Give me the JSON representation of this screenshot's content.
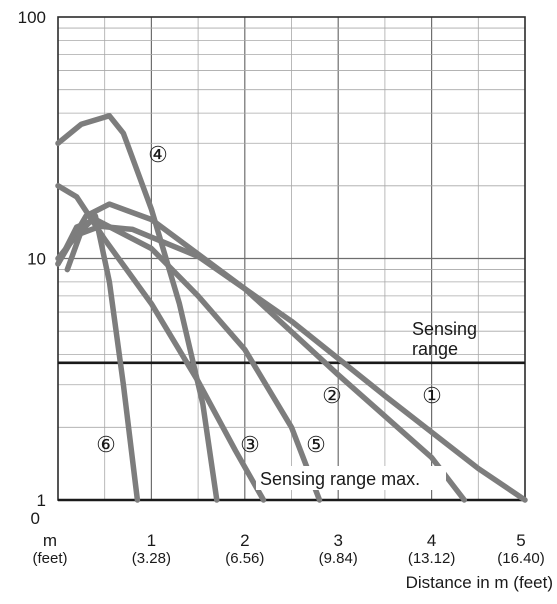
{
  "chart_data": {
    "type": "line",
    "x_axis": {
      "unit_label": "m",
      "unit_sub_label": "(feet)",
      "ticks": [
        1,
        2,
        3,
        4,
        5
      ],
      "tick_sub_labels": [
        "(3.28)",
        "(6.56)",
        "(9.84)",
        "(13.12)",
        "(16.40)"
      ],
      "zero_label": "0",
      "title": "Distance in m (feet)",
      "range": [
        0,
        5
      ]
    },
    "y_axis": {
      "scale": "log",
      "range": [
        1,
        100
      ],
      "tick_labels": [
        "1",
        "10",
        "100"
      ],
      "tick_values": [
        1,
        10,
        100
      ]
    },
    "grid": true,
    "reference_lines": [
      {
        "y": 3.7,
        "label_lines": [
          "Sensing",
          "range"
        ]
      },
      {
        "y": 1,
        "label": "Sensing range max."
      }
    ],
    "series": [
      {
        "name": "①",
        "points": [
          [
            0,
            10
          ],
          [
            0.2,
            12.5
          ],
          [
            0.45,
            13.6
          ],
          [
            0.8,
            13.2
          ],
          [
            1.5,
            10.2
          ],
          [
            2.5,
            5.5
          ],
          [
            3.5,
            2.7
          ],
          [
            4.5,
            1.35
          ],
          [
            5,
            1
          ]
        ]
      },
      {
        "name": "②",
        "points": [
          [
            0,
            9.5
          ],
          [
            0.3,
            15
          ],
          [
            0.55,
            16.8
          ],
          [
            1,
            14.5
          ],
          [
            2,
            7.5
          ],
          [
            3,
            3.3
          ],
          [
            4,
            1.5
          ],
          [
            4.35,
            1
          ]
        ]
      },
      {
        "name": "③",
        "points": [
          [
            0,
            20
          ],
          [
            0.2,
            18
          ],
          [
            0.5,
            12
          ],
          [
            1,
            6.5
          ],
          [
            1.5,
            3.1
          ],
          [
            1.9,
            1.6
          ],
          [
            2.2,
            1
          ]
        ]
      },
      {
        "name": "④",
        "points": [
          [
            0,
            30
          ],
          [
            0.25,
            36
          ],
          [
            0.55,
            39
          ],
          [
            0.7,
            33
          ],
          [
            1,
            16
          ],
          [
            1.3,
            6.5
          ],
          [
            1.55,
            2.5
          ],
          [
            1.7,
            1
          ]
        ]
      },
      {
        "name": "⑤",
        "points": [
          [
            0,
            9.5
          ],
          [
            0.2,
            13.5
          ],
          [
            0.4,
            14.5
          ],
          [
            1,
            11
          ],
          [
            1.5,
            7
          ],
          [
            2,
            4.2
          ],
          [
            2.5,
            2
          ],
          [
            2.8,
            1
          ]
        ]
      },
      {
        "name": "⑥",
        "points": [
          [
            0.1,
            9
          ],
          [
            0.25,
            13
          ],
          [
            0.4,
            15
          ],
          [
            0.55,
            8
          ],
          [
            0.7,
            3
          ],
          [
            0.85,
            1
          ]
        ]
      }
    ]
  }
}
